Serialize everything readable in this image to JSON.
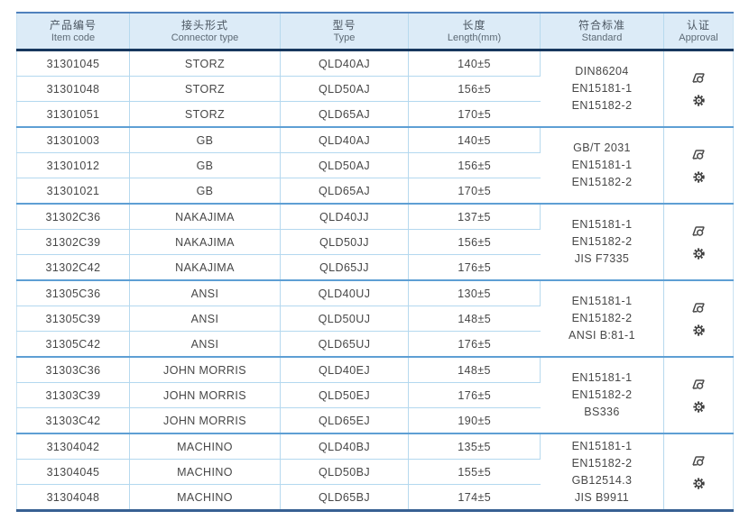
{
  "header": {
    "columns": [
      {
        "zh": "产品编号",
        "en": "Item code"
      },
      {
        "zh": "接头形式",
        "en": "Connector type"
      },
      {
        "zh": "型号",
        "en": "Type"
      },
      {
        "zh": "长度",
        "en": "Length(mm)"
      },
      {
        "zh": "符合标准",
        "en": "Standard"
      },
      {
        "zh": "认证",
        "en": "Approval"
      }
    ]
  },
  "approval": {
    "icons": [
      "certificate-stamp-icon",
      "wheelmark-gear-icon"
    ]
  },
  "colors": {
    "header_bg": "#dcebf7",
    "top_border": "#4f81bd",
    "header_rule": "#17375e",
    "row_line": "#b3d8ef",
    "group_line": "#5e9fd4",
    "bottom_border": "#376092",
    "text": "#474747",
    "icon": "#4a4a4a"
  },
  "groups": [
    {
      "rows": [
        {
          "item_code": "31301045",
          "connector_type": "STORZ",
          "type": "QLD40AJ",
          "length": "140±5"
        },
        {
          "item_code": "31301048",
          "connector_type": "STORZ",
          "type": "QLD50AJ",
          "length": "156±5"
        },
        {
          "item_code": "31301051",
          "connector_type": "STORZ",
          "type": "QLD65AJ",
          "length": "170±5"
        }
      ],
      "standards": [
        "DIN86204",
        "EN15181-1",
        "EN15182-2"
      ]
    },
    {
      "rows": [
        {
          "item_code": "31301003",
          "connector_type": "GB",
          "type": "QLD40AJ",
          "length": "140±5"
        },
        {
          "item_code": "31301012",
          "connector_type": "GB",
          "type": "QLD50AJ",
          "length": "156±5"
        },
        {
          "item_code": "31301021",
          "connector_type": "GB",
          "type": "QLD65AJ",
          "length": "170±5"
        }
      ],
      "standards": [
        "GB/T 2031",
        "EN15181-1",
        "EN15182-2"
      ]
    },
    {
      "rows": [
        {
          "item_code": "31302C36",
          "connector_type": "NAKAJIMA",
          "type": "QLD40JJ",
          "length": "137±5"
        },
        {
          "item_code": "31302C39",
          "connector_type": "NAKAJIMA",
          "type": "QLD50JJ",
          "length": "156±5"
        },
        {
          "item_code": "31302C42",
          "connector_type": "NAKAJIMA",
          "type": "QLD65JJ",
          "length": "176±5"
        }
      ],
      "standards": [
        "EN15181-1",
        "EN15182-2",
        "JIS F7335"
      ]
    },
    {
      "rows": [
        {
          "item_code": "31305C36",
          "connector_type": "ANSI",
          "type": "QLD40UJ",
          "length": "130±5"
        },
        {
          "item_code": "31305C39",
          "connector_type": "ANSI",
          "type": "QLD50UJ",
          "length": "148±5"
        },
        {
          "item_code": "31305C42",
          "connector_type": "ANSI",
          "type": "QLD65UJ",
          "length": "176±5"
        }
      ],
      "standards": [
        "EN15181-1",
        "EN15182-2",
        "ANSI B:81-1"
      ]
    },
    {
      "rows": [
        {
          "item_code": "31303C36",
          "connector_type": "JOHN MORRIS",
          "type": "QLD40EJ",
          "length": "148±5"
        },
        {
          "item_code": "31303C39",
          "connector_type": "JOHN MORRIS",
          "type": "QLD50EJ",
          "length": "176±5"
        },
        {
          "item_code": "31303C42",
          "connector_type": "JOHN MORRIS",
          "type": "QLD65EJ",
          "length": "190±5"
        }
      ],
      "standards": [
        "EN15181-1",
        "EN15182-2",
        "BS336"
      ]
    },
    {
      "rows": [
        {
          "item_code": "31304042",
          "connector_type": "MACHINO",
          "type": "QLD40BJ",
          "length": "135±5"
        },
        {
          "item_code": "31304045",
          "connector_type": "MACHINO",
          "type": "QLD50BJ",
          "length": "155±5"
        },
        {
          "item_code": "31304048",
          "connector_type": "MACHINO",
          "type": "QLD65BJ",
          "length": "174±5"
        }
      ],
      "standards": [
        "EN15181-1",
        "EN15182-2",
        "GB12514.3",
        "JIS B9911"
      ]
    }
  ]
}
